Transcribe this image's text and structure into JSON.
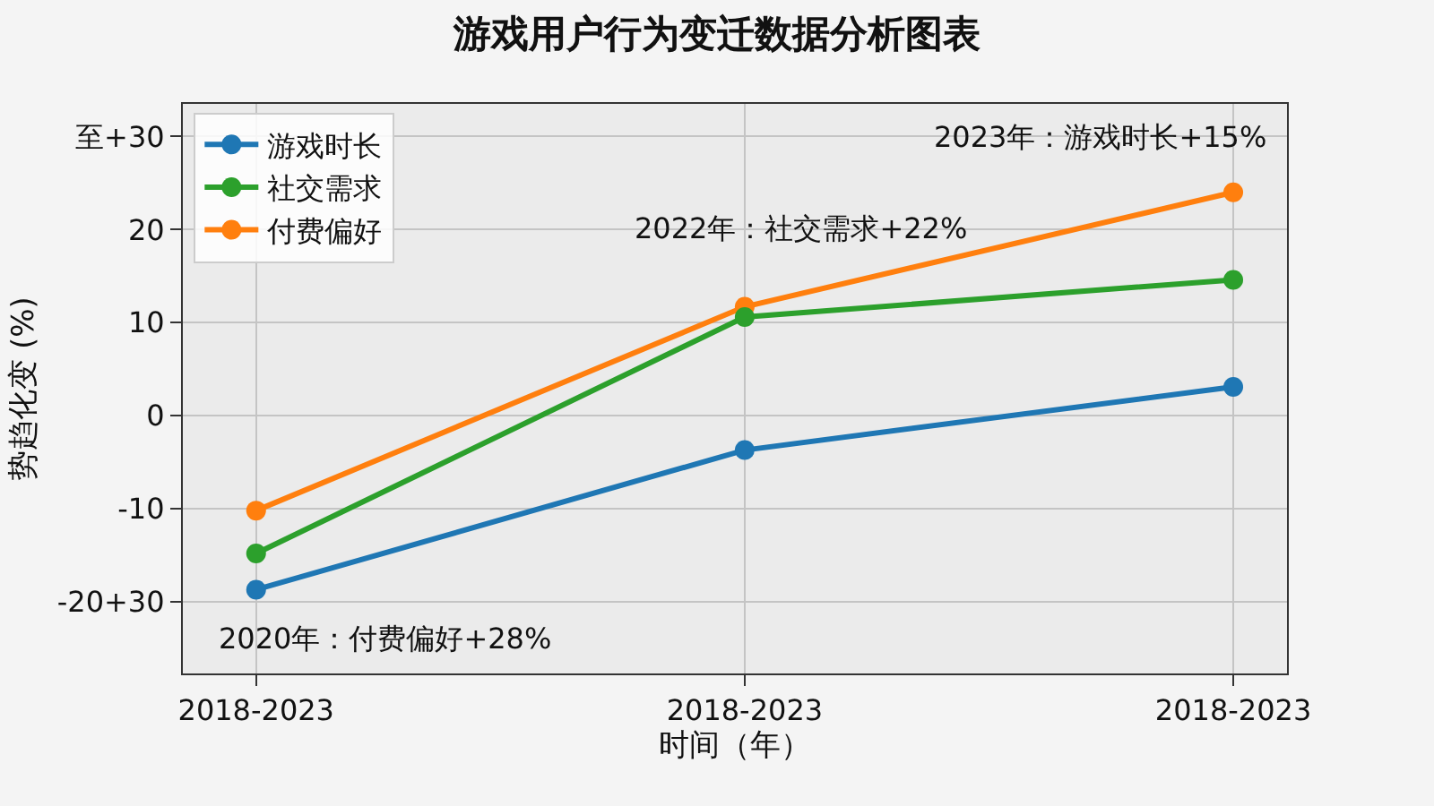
{
  "chart_data": {
    "type": "line",
    "title": "游戏用户行为变迁数据分析图表",
    "xlabel": "时间（年）",
    "ylabel": "势趋化变 (%)",
    "categories": [
      "2018-2023",
      "2018-2023",
      "2018-2023"
    ],
    "series": [
      {
        "name": "游戏时长",
        "color": "#1f77b4",
        "values": [
          -18.7,
          -3.7,
          3.1
        ]
      },
      {
        "name": "社交需求",
        "color": "#2ca02c",
        "values": [
          -14.8,
          10.6,
          14.6
        ]
      },
      {
        "name": "付费偏好",
        "color": "#ff7f0e",
        "values": [
          -10.2,
          11.7,
          24.0
        ]
      }
    ],
    "ylim": [
      -27.7,
      33.5
    ],
    "yticks": [
      {
        "value": 30,
        "label": "至+30"
      },
      20,
      10,
      0,
      -10,
      {
        "value": -20,
        "label": "-20+30"
      }
    ],
    "annotations": [
      "2020年：付费偏好+28%",
      "2022年：社交需求+22%",
      "2023年：游戏时长+15%"
    ],
    "grid": true,
    "legend": "top left",
    "marker": "circle",
    "line_style": "solid"
  }
}
